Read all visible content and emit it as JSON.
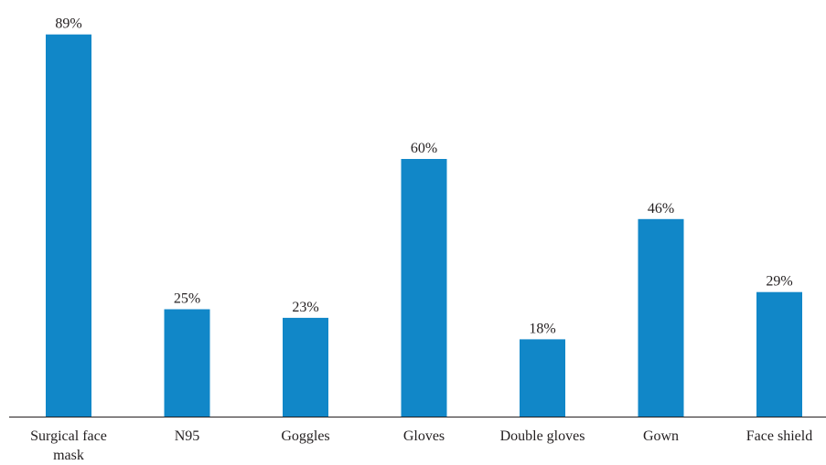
{
  "chart_data": {
    "type": "bar",
    "categories": [
      "Surgical face mask",
      "N95",
      "Goggles",
      "Gloves",
      "Double gloves",
      "Gown",
      "Face shield"
    ],
    "category_display": [
      [
        "Surgical face",
        "mask"
      ],
      [
        "N95"
      ],
      [
        "Goggles"
      ],
      [
        "Gloves"
      ],
      [
        "Double gloves"
      ],
      [
        "Gown"
      ],
      [
        "Face shield"
      ]
    ],
    "values": [
      89,
      25,
      23,
      60,
      18,
      46,
      29
    ],
    "data_labels": [
      "89%",
      "25%",
      "23%",
      "60%",
      "18%",
      "46%",
      "29%"
    ],
    "title": "",
    "xlabel": "",
    "ylabel": "",
    "ylim": [
      0,
      100
    ],
    "grid": false,
    "legend": "none",
    "bar_color": "#1187c8",
    "axis_color": "#231f20"
  }
}
